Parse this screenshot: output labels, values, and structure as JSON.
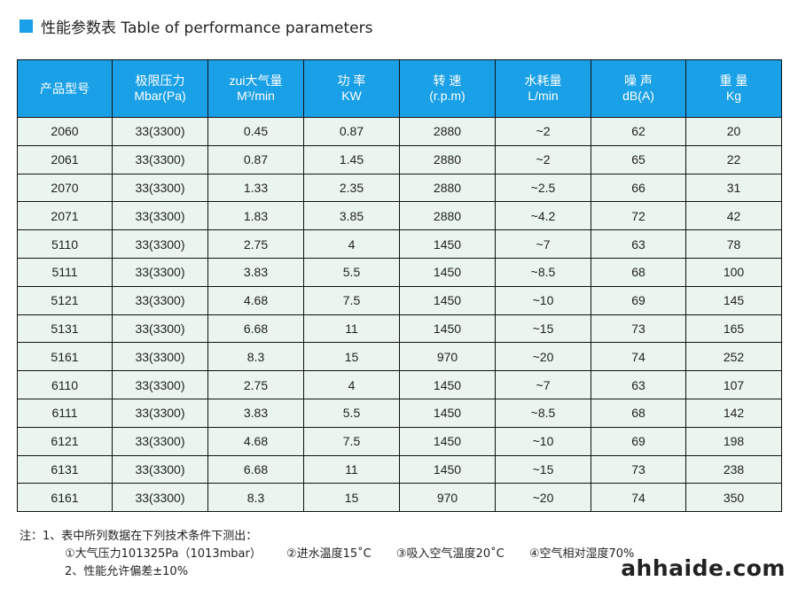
{
  "title": {
    "text": "性能参数表  Table of performance parameters",
    "accent_color": "#1aa0e6"
  },
  "table": {
    "header_color": "#1aa0e6",
    "row_color": "#eaf5ee",
    "columns": [
      {
        "line1": "产品型号",
        "line2": ""
      },
      {
        "line1": "极限压力",
        "line2": "Mbar(Pa)"
      },
      {
        "line1": "zui大气量",
        "line2": "M³/min"
      },
      {
        "line1": "功 率",
        "line2": "KW"
      },
      {
        "line1": "转 速",
        "line2": "(r.p.m)"
      },
      {
        "line1": "水耗量",
        "line2": "L/min"
      },
      {
        "line1": "噪 声",
        "line2": "dB(A)"
      },
      {
        "line1": "重 量",
        "line2": "Kg"
      }
    ],
    "rows": [
      [
        "2060",
        "33(3300)",
        "0.45",
        "0.87",
        "2880",
        "~2",
        "62",
        "20"
      ],
      [
        "2061",
        "33(3300)",
        "0.87",
        "1.45",
        "2880",
        "~2",
        "65",
        "22"
      ],
      [
        "2070",
        "33(3300)",
        "1.33",
        "2.35",
        "2880",
        "~2.5",
        "66",
        "31"
      ],
      [
        "2071",
        "33(3300)",
        "1.83",
        "3.85",
        "2880",
        "~4.2",
        "72",
        "42"
      ],
      [
        "5110",
        "33(3300)",
        "2.75",
        "4",
        "1450",
        "~7",
        "63",
        "78"
      ],
      [
        "5111",
        "33(3300)",
        "3.83",
        "5.5",
        "1450",
        "~8.5",
        "68",
        "100"
      ],
      [
        "5121",
        "33(3300)",
        "4.68",
        "7.5",
        "1450",
        "~10",
        "69",
        "145"
      ],
      [
        "5131",
        "33(3300)",
        "6.68",
        "11",
        "1450",
        "~15",
        "73",
        "165"
      ],
      [
        "5161",
        "33(3300)",
        "8.3",
        "15",
        "970",
        "~20",
        "74",
        "252"
      ],
      [
        "6110",
        "33(3300)",
        "2.75",
        "4",
        "1450",
        "~7",
        "63",
        "107"
      ],
      [
        "6111",
        "33(3300)",
        "3.83",
        "5.5",
        "1450",
        "~8.5",
        "68",
        "142"
      ],
      [
        "6121",
        "33(3300)",
        "4.68",
        "7.5",
        "1450",
        "~10",
        "69",
        "198"
      ],
      [
        "6131",
        "33(3300)",
        "6.68",
        "11",
        "1450",
        "~15",
        "73",
        "238"
      ],
      [
        "6161",
        "33(3300)",
        "8.3",
        "15",
        "970",
        "~20",
        "74",
        "350"
      ]
    ]
  },
  "notes": {
    "line1": "注：1、表中所列数据在下列技术条件下测出：",
    "conditions": [
      "①大气压力101325Pa（1013mbar）",
      "②进水温度15˚C",
      "③吸入空气温度20˚C",
      "④空气相对湿度70%"
    ],
    "line3": "2、性能允许偏差±10%"
  },
  "watermark": "ahhaide.com"
}
